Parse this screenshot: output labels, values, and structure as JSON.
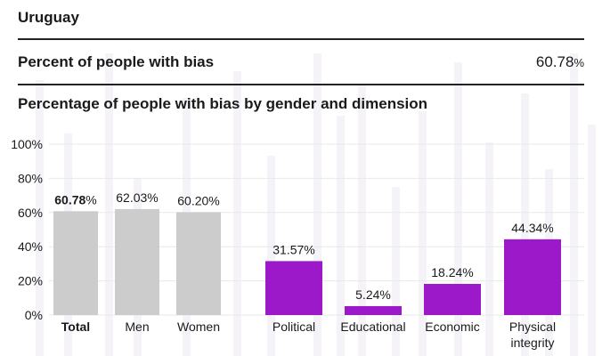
{
  "header": {
    "country": "Uruguay",
    "metric_label": "Percent of people with bias",
    "metric_value": "60.78",
    "metric_unit": "%",
    "section_title": "Percentage of people with bias by gender and dimension"
  },
  "colors": {
    "gray_bar": "#cccccc",
    "purple_bar": "#9b19c9",
    "text": "#1a1a1a",
    "grid": "#e8e8e8",
    "deco": "#f5f3f7"
  },
  "chart_data": {
    "type": "bar",
    "ylim": [
      0,
      100
    ],
    "yticks": [
      "0%",
      "20%",
      "40%",
      "60%",
      "80%",
      "100%"
    ],
    "ytick_values": [
      0,
      20,
      40,
      60,
      80,
      100
    ],
    "grid": true,
    "categories": [
      "Total",
      "Men",
      "Women",
      "Political",
      "Educational",
      "Economic",
      "Physical integrity"
    ],
    "values": [
      60.78,
      62.03,
      60.2,
      31.57,
      5.24,
      18.24,
      44.34
    ],
    "labels": [
      "60.78%",
      "62.03%",
      "60.20%",
      "31.57%",
      "5.24%",
      "18.24%",
      "44.34%"
    ],
    "groups": [
      "gender",
      "gender",
      "gender",
      "dimension",
      "dimension",
      "dimension",
      "dimension"
    ]
  }
}
